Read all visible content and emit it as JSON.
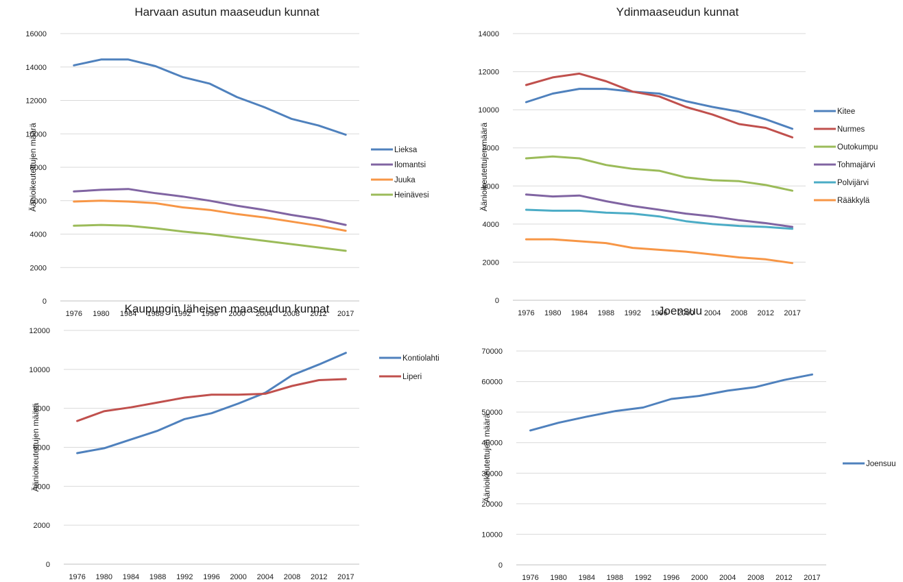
{
  "chart_data": [
    {
      "type": "line",
      "title": "Harvaan asutun maaseudun kunnat",
      "xlabel": "",
      "ylabel": "Äänioikeutettujen määrä",
      "categories": [
        "1976",
        "1980",
        "1984",
        "1988",
        "1992",
        "1996",
        "2000",
        "2004",
        "2008",
        "2012",
        "2017"
      ],
      "ylim": [
        0,
        16000
      ],
      "yticks": [
        0,
        2000,
        4000,
        6000,
        8000,
        10000,
        12000,
        14000,
        16000
      ],
      "grid": true,
      "legend": "right",
      "series": [
        {
          "name": "Lieksa",
          "color": "#4f81bd",
          "values": [
            14100,
            14450,
            14450,
            14050,
            13400,
            13000,
            12200,
            11600,
            10900,
            10500,
            9950
          ]
        },
        {
          "name": "Ilomantsi",
          "color": "#8064a2",
          "values": [
            6550,
            6650,
            6700,
            6450,
            6250,
            6000,
            5700,
            5450,
            5150,
            4900,
            4550
          ]
        },
        {
          "name": "Juuka",
          "color": "#f79646",
          "values": [
            5950,
            6000,
            5950,
            5850,
            5600,
            5450,
            5200,
            5000,
            4750,
            4500,
            4200
          ]
        },
        {
          "name": "Heinävesi",
          "color": "#9bbb59",
          "values": [
            4500,
            4550,
            4500,
            4350,
            4150,
            4000,
            3800,
            3600,
            3400,
            3200,
            3000
          ]
        }
      ]
    },
    {
      "type": "line",
      "title": "Ydinmaaseudun kunnat",
      "xlabel": "",
      "ylabel": "Äänioikeutettujen määrä",
      "categories": [
        "1976",
        "1980",
        "1984",
        "1988",
        "1992",
        "1996",
        "2000",
        "2004",
        "2008",
        "2012",
        "2017"
      ],
      "ylim": [
        0,
        14000
      ],
      "yticks": [
        0,
        2000,
        4000,
        6000,
        8000,
        10000,
        12000,
        14000
      ],
      "grid": true,
      "legend": "right",
      "series": [
        {
          "name": "Kitee",
          "color": "#4f81bd",
          "values": [
            10400,
            10850,
            11100,
            11100,
            10950,
            10850,
            10450,
            10150,
            9900,
            9500,
            9000
          ]
        },
        {
          "name": "Nurmes",
          "color": "#c0504d",
          "values": [
            11300,
            11700,
            11900,
            11500,
            10950,
            10700,
            10150,
            9750,
            9250,
            9050,
            8550
          ]
        },
        {
          "name": "Outokumpu",
          "color": "#9bbb59",
          "values": [
            7450,
            7550,
            7450,
            7100,
            6900,
            6800,
            6450,
            6300,
            6250,
            6050,
            5750
          ]
        },
        {
          "name": "Tohmajärvi",
          "color": "#8064a2",
          "values": [
            5550,
            5450,
            5500,
            5200,
            4950,
            4750,
            4550,
            4400,
            4200,
            4050,
            3850
          ]
        },
        {
          "name": "Polvijärvi",
          "color": "#4bacc6",
          "values": [
            4750,
            4700,
            4700,
            4600,
            4550,
            4400,
            4150,
            4000,
            3900,
            3850,
            3750
          ]
        },
        {
          "name": "Rääkkylä",
          "color": "#f79646",
          "values": [
            3200,
            3200,
            3100,
            3000,
            2750,
            2650,
            2550,
            2400,
            2250,
            2150,
            1950
          ]
        }
      ]
    },
    {
      "type": "line",
      "title": "Kaupungin läheisen maaseudun kunnat",
      "xlabel": "",
      "ylabel": "Äänioikeutettujen määrä",
      "categories": [
        "1976",
        "1980",
        "1984",
        "1988",
        "1992",
        "1996",
        "2000",
        "2004",
        "2008",
        "2012",
        "2017"
      ],
      "ylim": [
        0,
        12000
      ],
      "yticks": [
        0,
        2000,
        4000,
        6000,
        8000,
        10000,
        12000
      ],
      "grid": true,
      "legend": "right",
      "series": [
        {
          "name": "Kontiolahti",
          "color": "#4f81bd",
          "values": [
            5700,
            5950,
            6400,
            6850,
            7450,
            7750,
            8250,
            8800,
            9700,
            10250,
            10850
          ]
        },
        {
          "name": "Liperi",
          "color": "#c0504d",
          "values": [
            7350,
            7850,
            8050,
            8300,
            8550,
            8700,
            8700,
            8750,
            9150,
            9450,
            9500
          ]
        }
      ]
    },
    {
      "type": "line",
      "title": "Joensuu",
      "xlabel": "",
      "ylabel": "Äänioikeutettujen määrä",
      "categories": [
        "1976",
        "1980",
        "1984",
        "1988",
        "1992",
        "1996",
        "2000",
        "2004",
        "2008",
        "2012",
        "2017"
      ],
      "ylim": [
        0,
        70000
      ],
      "yticks": [
        0,
        10000,
        20000,
        30000,
        40000,
        50000,
        60000,
        70000
      ],
      "grid": true,
      "legend": "right",
      "series": [
        {
          "name": "Joensuu",
          "color": "#4f81bd",
          "values": [
            44000,
            46500,
            48500,
            50300,
            51500,
            54300,
            55300,
            57000,
            58200,
            60500,
            62300
          ]
        }
      ]
    }
  ]
}
